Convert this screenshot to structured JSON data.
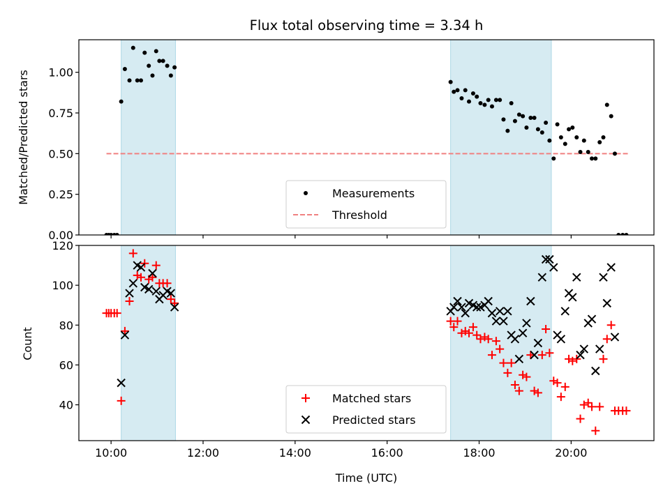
{
  "chart_data": [
    {
      "type": "scatter",
      "title": "Flux total observing time = 3.34 h",
      "xlabel": "",
      "ylabel": "Matched/Predicted stars",
      "xlim_hours": [
        9.3,
        21.8
      ],
      "ylim": [
        0,
        1.2
      ],
      "yticks": [
        0.0,
        0.25,
        0.5,
        0.75,
        1.0
      ],
      "ytick_labels": [
        "0.00",
        "0.25",
        "0.50",
        "0.75",
        "1.00"
      ],
      "legend_loc": "lower center",
      "threshold": {
        "name": "Threshold",
        "value": 0.5,
        "x_range": [
          9.9,
          21.25
        ],
        "color": "#f08080"
      },
      "shaded_intervals": [
        [
          10.22,
          11.4
        ],
        [
          17.38,
          19.57
        ]
      ],
      "series": [
        {
          "name": "Measurements",
          "color": "#000000",
          "marker": "dot",
          "x": [
            9.9,
            9.95,
            10.0,
            10.07,
            10.13,
            10.22,
            10.3,
            10.4,
            10.48,
            10.57,
            10.65,
            10.73,
            10.82,
            10.9,
            10.98,
            11.05,
            11.13,
            11.22,
            11.3,
            11.38,
            17.38,
            17.45,
            17.53,
            17.62,
            17.7,
            17.78,
            17.87,
            17.95,
            18.03,
            18.12,
            18.2,
            18.28,
            18.37,
            18.45,
            18.53,
            18.62,
            18.7,
            18.78,
            18.87,
            18.95,
            19.03,
            19.12,
            19.2,
            19.28,
            19.37,
            19.45,
            19.53,
            19.62,
            19.7,
            19.78,
            19.87,
            19.95,
            20.03,
            20.12,
            20.2,
            20.28,
            20.37,
            20.45,
            20.53,
            20.62,
            20.7,
            20.78,
            20.87,
            20.95,
            21.03,
            21.12,
            21.2
          ],
          "y": [
            0.0,
            0.0,
            0.0,
            0.0,
            0.0,
            0.82,
            1.02,
            0.95,
            1.15,
            0.95,
            0.95,
            1.12,
            1.04,
            0.98,
            1.13,
            1.07,
            1.07,
            1.04,
            0.98,
            1.03,
            0.94,
            0.88,
            0.89,
            0.84,
            0.89,
            0.82,
            0.87,
            0.85,
            0.81,
            0.8,
            0.83,
            0.79,
            0.83,
            0.83,
            0.71,
            0.64,
            0.81,
            0.7,
            0.74,
            0.73,
            0.66,
            0.72,
            0.72,
            0.65,
            0.63,
            0.69,
            0.58,
            0.47,
            0.68,
            0.6,
            0.56,
            0.65,
            0.66,
            0.6,
            0.51,
            0.58,
            0.51,
            0.47,
            0.47,
            0.57,
            0.6,
            0.8,
            0.73,
            0.5,
            0.0,
            0.0,
            0.0
          ]
        }
      ]
    },
    {
      "type": "scatter",
      "title": "",
      "xlabel": "Time (UTC)",
      "ylabel": "Count",
      "xlim_hours": [
        9.3,
        21.8
      ],
      "ylim": [
        22,
        120
      ],
      "yticks": [
        40,
        60,
        80,
        100,
        120
      ],
      "ytick_labels": [
        "40",
        "60",
        "80",
        "100",
        "120"
      ],
      "xticks_hours": [
        10,
        12,
        14,
        16,
        18,
        20
      ],
      "xtick_labels": [
        "10:00",
        "12:00",
        "14:00",
        "16:00",
        "18:00",
        "20:00"
      ],
      "legend_loc": "lower center",
      "shaded_intervals": [
        [
          10.22,
          11.4
        ],
        [
          17.38,
          19.57
        ]
      ],
      "series": [
        {
          "name": "Matched stars",
          "color": "#ff0000",
          "marker": "plus",
          "x": [
            9.9,
            9.95,
            10.0,
            10.07,
            10.13,
            10.22,
            10.3,
            10.4,
            10.48,
            10.57,
            10.65,
            10.73,
            10.82,
            10.9,
            10.98,
            11.05,
            11.13,
            11.22,
            11.3,
            11.38,
            17.38,
            17.45,
            17.53,
            17.62,
            17.7,
            17.78,
            17.87,
            17.95,
            18.03,
            18.12,
            18.2,
            18.28,
            18.37,
            18.45,
            18.53,
            18.62,
            18.7,
            18.78,
            18.87,
            18.95,
            19.03,
            19.12,
            19.2,
            19.28,
            19.37,
            19.45,
            19.53,
            19.62,
            19.7,
            19.78,
            19.87,
            19.95,
            20.03,
            20.12,
            20.2,
            20.28,
            20.37,
            20.45,
            20.53,
            20.62,
            20.7,
            20.78,
            20.87,
            20.95,
            21.03,
            21.12,
            21.2
          ],
          "y": [
            86,
            86,
            86,
            86,
            86,
            42,
            77,
            92,
            116,
            105,
            104,
            111,
            103,
            104,
            110,
            101,
            101,
            101,
            93,
            91,
            82,
            79,
            82,
            76,
            77,
            76,
            79,
            75,
            73,
            74,
            73,
            65,
            72,
            68,
            61,
            56,
            61,
            50,
            47,
            55,
            54,
            65,
            47,
            46,
            65,
            78,
            66,
            52,
            51,
            44,
            49,
            63,
            62,
            63,
            33,
            40,
            41,
            39,
            27,
            39,
            63,
            73,
            80,
            37,
            37,
            37,
            37
          ]
        },
        {
          "name": "Predicted stars",
          "color": "#000000",
          "marker": "x",
          "x": [
            10.22,
            10.3,
            10.4,
            10.48,
            10.57,
            10.65,
            10.73,
            10.82,
            10.9,
            10.98,
            11.05,
            11.13,
            11.22,
            11.3,
            11.38,
            17.38,
            17.45,
            17.53,
            17.62,
            17.7,
            17.78,
            17.87,
            17.95,
            18.03,
            18.12,
            18.2,
            18.28,
            18.37,
            18.45,
            18.53,
            18.62,
            18.7,
            18.78,
            18.87,
            18.95,
            19.03,
            19.12,
            19.2,
            19.28,
            19.37,
            19.45,
            19.53,
            19.62,
            19.7,
            19.78,
            19.87,
            19.95,
            20.03,
            20.12,
            20.2,
            20.28,
            20.37,
            20.45,
            20.53,
            20.62,
            20.7,
            20.78,
            20.87,
            20.95
          ],
          "y": [
            51,
            75,
            96,
            101,
            110,
            109,
            99,
            98,
            106,
            97,
            93,
            95,
            97,
            96,
            89,
            87,
            89,
            92,
            89,
            86,
            91,
            90,
            89,
            89,
            90,
            92,
            86,
            82,
            87,
            82,
            87,
            75,
            73,
            63,
            76,
            81,
            92,
            65,
            71,
            104,
            113,
            113,
            109,
            75,
            73,
            87,
            96,
            94,
            104,
            65,
            68,
            81,
            83,
            57,
            68,
            104,
            91,
            109,
            74
          ]
        }
      ]
    }
  ]
}
